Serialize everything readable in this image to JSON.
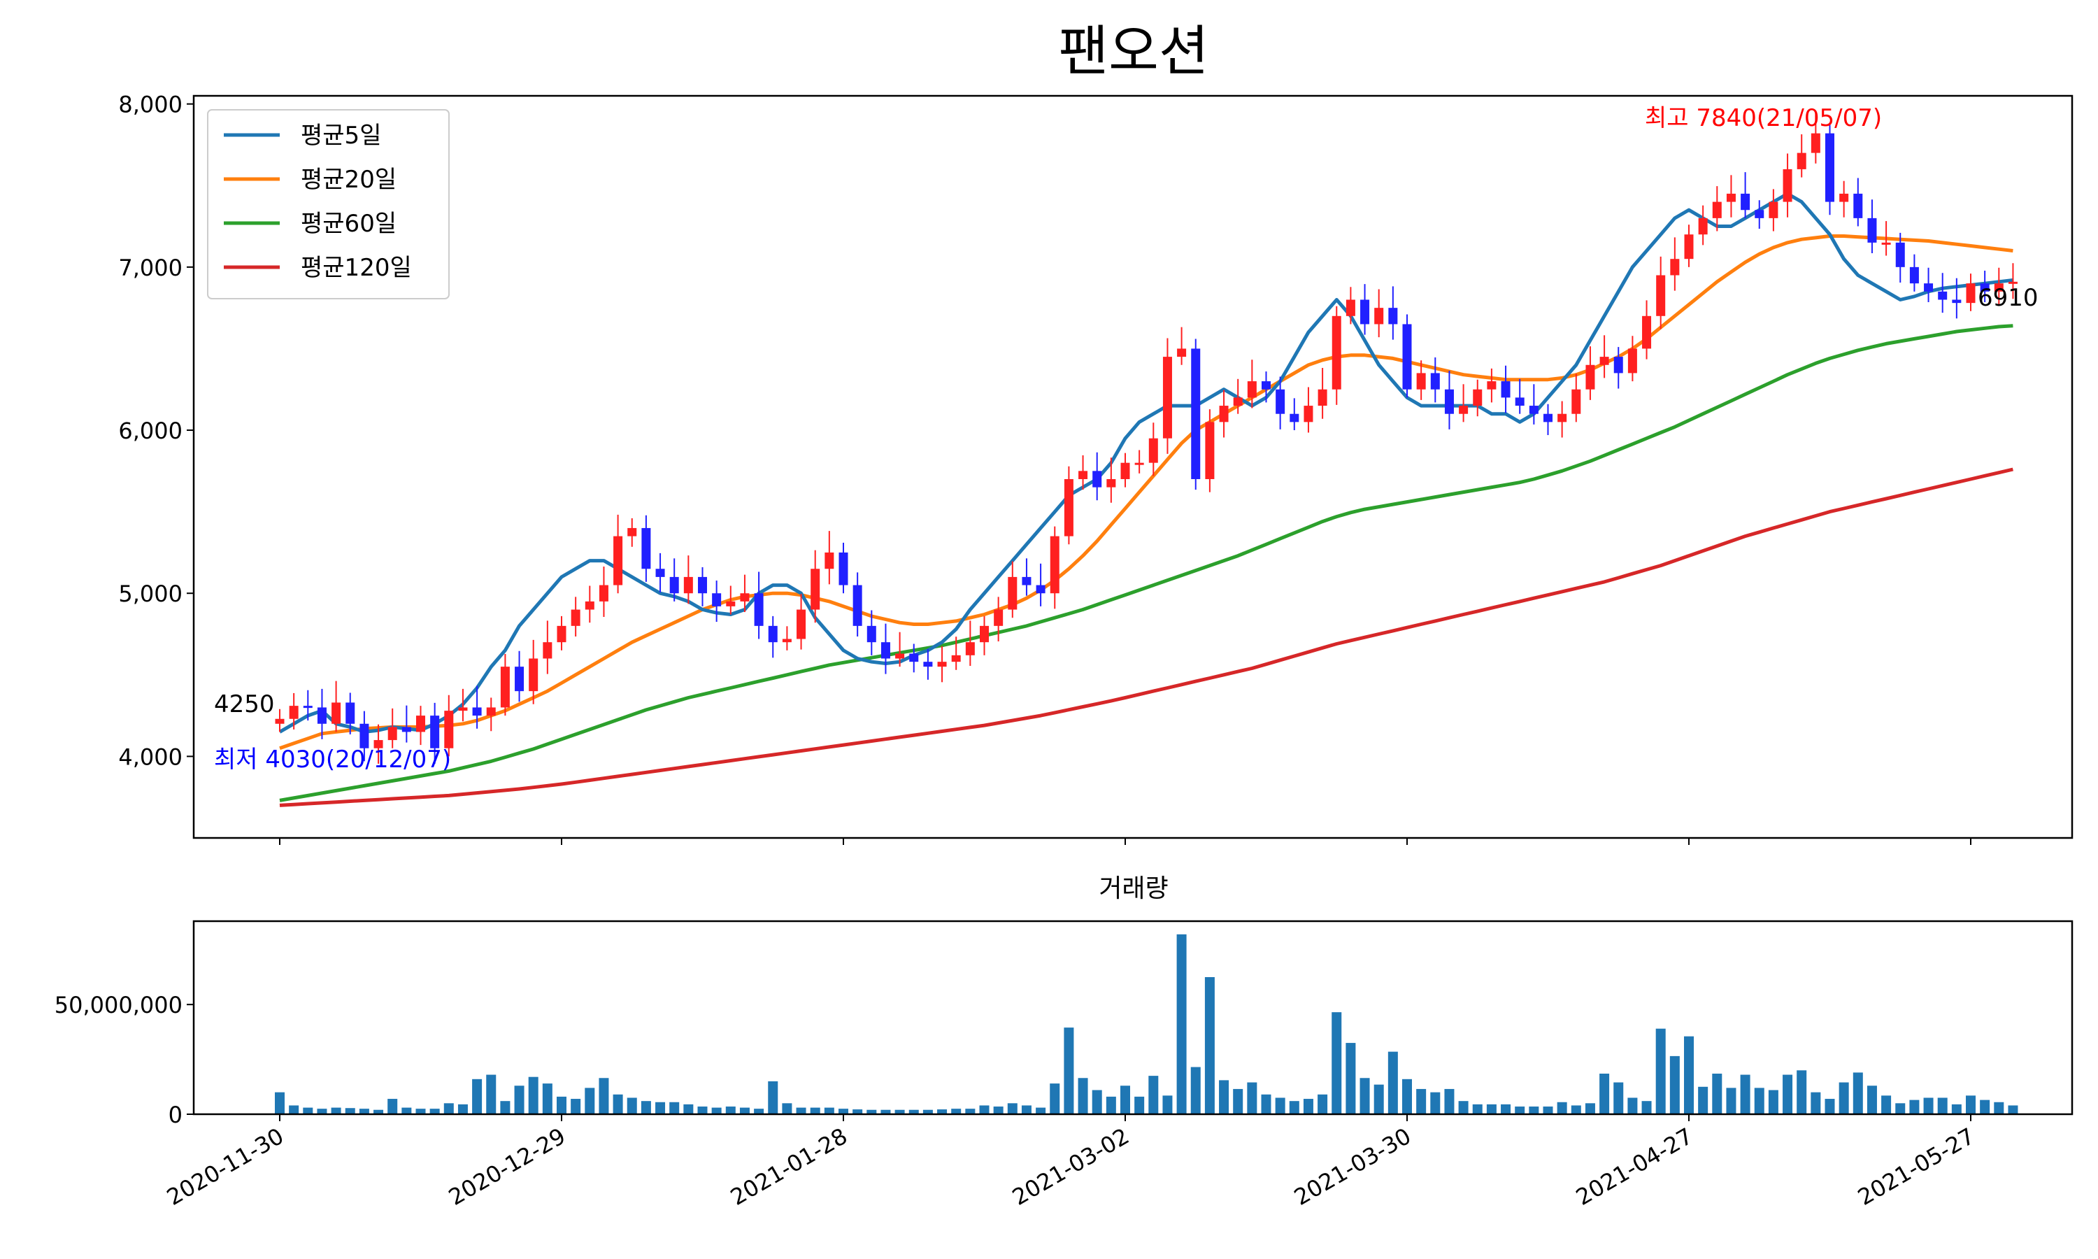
{
  "chart_data": [
    {
      "type": "candlestick",
      "title": "팬오션",
      "ylim": [
        3500,
        8050
      ],
      "yticks": [
        "4,000",
        "5,000",
        "6,000",
        "7,000",
        "8,000"
      ],
      "ytick_values": [
        4000,
        5000,
        6000,
        7000,
        8000
      ],
      "xticks": [
        "2020-11-30",
        "2020-12-29",
        "2021-01-28",
        "2021-03-02",
        "2021-03-30",
        "2021-04-27",
        "2021-05-27"
      ],
      "xtick_index": [
        0,
        20,
        40,
        60,
        80,
        100,
        120
      ],
      "legend": {
        "placement": "top-left",
        "entries": [
          {
            "name": "평균5일",
            "color": "#1f77b4"
          },
          {
            "name": "평균20일",
            "color": "#ff7f0e"
          },
          {
            "name": "평균60일",
            "color": "#2ca02c"
          },
          {
            "name": "평균120일",
            "color": "#d62728"
          }
        ]
      },
      "annotations": {
        "high": {
          "text": "최고 7840(21/05/07)",
          "value": 7840,
          "index": 107,
          "color": "#ff0000"
        },
        "low": {
          "text": "최저 4030(20/12/07)",
          "value": 4030,
          "index": 5,
          "color": "#0000ff"
        },
        "first": {
          "text": "4250",
          "value": 4250
        },
        "last": {
          "text": "6910",
          "value": 6910
        }
      },
      "up_color": "#ff2020",
      "down_color": "#2020ff",
      "close": [
        4230,
        4310,
        4300,
        4200,
        4330,
        4200,
        4050,
        4100,
        4180,
        4150,
        4250,
        4050,
        4280,
        4300,
        4250,
        4300,
        4550,
        4400,
        4600,
        4700,
        4800,
        4900,
        4950,
        5050,
        5350,
        5400,
        5150,
        5100,
        5000,
        5100,
        5000,
        4920,
        4950,
        5000,
        4800,
        4700,
        4720,
        4900,
        5150,
        5250,
        5050,
        4800,
        4700,
        4600,
        4630,
        4580,
        4550,
        4580,
        4620,
        4700,
        4800,
        4900,
        5100,
        5050,
        5000,
        5350,
        5700,
        5750,
        5650,
        5700,
        5800,
        5800,
        5950,
        6450,
        6500,
        5700,
        6050,
        6150,
        6200,
        6300,
        6250,
        6100,
        6050,
        6150,
        6250,
        6700,
        6800,
        6650,
        6750,
        6650,
        6250,
        6350,
        6250,
        6100,
        6150,
        6250,
        6300,
        6200,
        6150,
        6100,
        6050,
        6100,
        6250,
        6400,
        6450,
        6350,
        6500,
        6700,
        6950,
        7050,
        7200,
        7300,
        7400,
        7450,
        7350,
        7300,
        7400,
        7600,
        7700,
        7820,
        7400,
        7450,
        7300,
        7150,
        7150,
        7000,
        6900,
        6850,
        6800,
        6780,
        6900,
        6850,
        6900,
        6910
      ],
      "ma5": [
        4150,
        4200,
        4250,
        4280,
        4200,
        4180,
        4150,
        4160,
        4180,
        4170,
        4160,
        4200,
        4250,
        4320,
        4420,
        4550,
        4650,
        4800,
        4900,
        5000,
        5100,
        5150,
        5200,
        5200,
        5150,
        5100,
        5050,
        5000,
        4980,
        4950,
        4900,
        4880,
        4870,
        4900,
        5000,
        5050,
        5050,
        5000,
        4850,
        4750,
        4650,
        4600,
        4580,
        4570,
        4580,
        4620,
        4650,
        4700,
        4780,
        4900,
        5000,
        5100,
        5200,
        5300,
        5400,
        5500,
        5600,
        5650,
        5700,
        5800,
        5950,
        6050,
        6100,
        6150,
        6150,
        6150,
        6200,
        6250,
        6200,
        6150,
        6200,
        6300,
        6450,
        6600,
        6700,
        6800,
        6700,
        6550,
        6400,
        6300,
        6200,
        6150,
        6150,
        6150,
        6150,
        6150,
        6100,
        6100,
        6050,
        6100,
        6200,
        6300,
        6400,
        6550,
        6700,
        6850,
        7000,
        7100,
        7200,
        7300,
        7350,
        7300,
        7250,
        7250,
        7300,
        7350,
        7400,
        7450,
        7400,
        7300,
        7200,
        7050,
        6950,
        6900,
        6850,
        6800,
        6820,
        6850,
        6870,
        6880,
        6890,
        6900,
        6910,
        6920
      ],
      "ma20": [
        4050,
        4080,
        4110,
        4140,
        4150,
        4160,
        4170,
        4175,
        4180,
        4180,
        4180,
        4185,
        4190,
        4200,
        4220,
        4250,
        4280,
        4320,
        4360,
        4400,
        4450,
        4500,
        4550,
        4600,
        4650,
        4700,
        4740,
        4780,
        4820,
        4860,
        4900,
        4930,
        4960,
        4980,
        4990,
        5000,
        5000,
        4990,
        4970,
        4950,
        4920,
        4890,
        4860,
        4840,
        4820,
        4810,
        4810,
        4820,
        4830,
        4850,
        4870,
        4900,
        4930,
        4970,
        5020,
        5080,
        5150,
        5230,
        5320,
        5420,
        5520,
        5620,
        5720,
        5820,
        5920,
        6000,
        6050,
        6100,
        6150,
        6200,
        6250,
        6300,
        6350,
        6400,
        6430,
        6450,
        6460,
        6460,
        6450,
        6440,
        6420,
        6400,
        6380,
        6360,
        6340,
        6330,
        6320,
        6310,
        6310,
        6310,
        6310,
        6320,
        6340,
        6370,
        6410,
        6450,
        6500,
        6560,
        6630,
        6700,
        6770,
        6840,
        6910,
        6970,
        7030,
        7080,
        7120,
        7150,
        7170,
        7180,
        7190,
        7190,
        7185,
        7180,
        7175,
        7170,
        7165,
        7160,
        7150,
        7140,
        7130,
        7120,
        7110,
        7100
      ],
      "ma60": [
        3730,
        3745,
        3760,
        3775,
        3790,
        3805,
        3820,
        3835,
        3850,
        3865,
        3880,
        3895,
        3910,
        3930,
        3950,
        3970,
        3995,
        4020,
        4045,
        4075,
        4105,
        4135,
        4165,
        4195,
        4225,
        4255,
        4285,
        4310,
        4335,
        4360,
        4380,
        4400,
        4420,
        4440,
        4460,
        4480,
        4500,
        4520,
        4540,
        4560,
        4575,
        4590,
        4605,
        4620,
        4635,
        4650,
        4665,
        4680,
        4700,
        4720,
        4740,
        4760,
        4780,
        4800,
        4825,
        4850,
        4875,
        4900,
        4930,
        4960,
        4990,
        5020,
        5050,
        5080,
        5110,
        5140,
        5170,
        5200,
        5230,
        5265,
        5300,
        5335,
        5370,
        5405,
        5440,
        5470,
        5495,
        5515,
        5530,
        5545,
        5560,
        5575,
        5590,
        5605,
        5620,
        5635,
        5650,
        5665,
        5680,
        5700,
        5725,
        5750,
        5780,
        5810,
        5845,
        5880,
        5915,
        5950,
        5985,
        6020,
        6060,
        6100,
        6140,
        6180,
        6220,
        6260,
        6300,
        6340,
        6375,
        6410,
        6440,
        6465,
        6490,
        6510,
        6530,
        6545,
        6560,
        6575,
        6590,
        6605,
        6615,
        6625,
        6635,
        6640
      ],
      "ma120": [
        3700,
        3705,
        3710,
        3715,
        3720,
        3725,
        3730,
        3735,
        3740,
        3745,
        3750,
        3755,
        3760,
        3768,
        3776,
        3784,
        3792,
        3800,
        3810,
        3820,
        3830,
        3842,
        3854,
        3866,
        3878,
        3890,
        3902,
        3914,
        3926,
        3938,
        3950,
        3962,
        3974,
        3986,
        3998,
        4010,
        4022,
        4034,
        4046,
        4058,
        4070,
        4082,
        4094,
        4106,
        4118,
        4130,
        4142,
        4154,
        4166,
        4178,
        4190,
        4205,
        4220,
        4235,
        4250,
        4268,
        4286,
        4304,
        4322,
        4340,
        4360,
        4380,
        4400,
        4420,
        4440,
        4460,
        4480,
        4500,
        4520,
        4540,
        4565,
        4590,
        4615,
        4640,
        4665,
        4690,
        4710,
        4730,
        4750,
        4770,
        4790,
        4810,
        4830,
        4850,
        4870,
        4890,
        4910,
        4930,
        4950,
        4970,
        4990,
        5010,
        5030,
        5050,
        5070,
        5095,
        5120,
        5145,
        5170,
        5200,
        5230,
        5260,
        5290,
        5320,
        5350,
        5375,
        5400,
        5425,
        5450,
        5475,
        5500,
        5520,
        5540,
        5560,
        5580,
        5600,
        5620,
        5640,
        5660,
        5680,
        5700,
        5720,
        5740,
        5760
      ]
    },
    {
      "type": "bar",
      "title": "거래량",
      "ylim": [
        0,
        88000000
      ],
      "yticks": [
        "0",
        "50,000,000"
      ],
      "ytick_values": [
        0,
        50000000
      ],
      "color": "#1f77b4",
      "values": [
        10000000,
        4000000,
        3000000,
        2500000,
        3000000,
        2800000,
        2500000,
        2000000,
        7000000,
        3000000,
        2500000,
        2500000,
        5000000,
        4500000,
        16000000,
        18000000,
        6000000,
        13000000,
        17000000,
        14000000,
        8000000,
        7000000,
        12000000,
        16500000,
        9000000,
        7500000,
        6000000,
        5500000,
        5500000,
        4500000,
        3500000,
        3000000,
        3500000,
        3000000,
        2500000,
        15000000,
        5000000,
        3000000,
        3000000,
        3000000,
        2500000,
        2200000,
        2000000,
        2000000,
        2000000,
        2000000,
        2000000,
        2200000,
        2500000,
        2500000,
        4000000,
        3500000,
        5000000,
        4000000,
        3000000,
        14000000,
        39500000,
        16500000,
        11000000,
        8000000,
        13000000,
        8000000,
        17500000,
        8500000,
        82000000,
        21500000,
        62500000,
        15500000,
        11500000,
        14500000,
        9000000,
        7500000,
        6000000,
        7000000,
        9000000,
        46500000,
        32500000,
        16500000,
        13500000,
        28500000,
        16000000,
        11500000,
        10000000,
        11500000,
        6000000,
        4500000,
        4500000,
        4500000,
        3500000,
        3500000,
        3500000,
        5500000,
        4000000,
        5000000,
        18500000,
        14500000,
        7500000,
        6000000,
        39000000,
        26500000,
        35500000,
        12500000,
        18500000,
        12000000,
        18000000,
        12000000,
        11000000,
        18000000,
        20000000,
        10000000,
        7000000,
        14500000,
        19000000,
        13000000,
        8500000,
        5000000,
        6500000,
        7500000,
        7500000,
        4500000,
        8500000,
        6500000,
        5500000,
        4000000
      ]
    }
  ]
}
